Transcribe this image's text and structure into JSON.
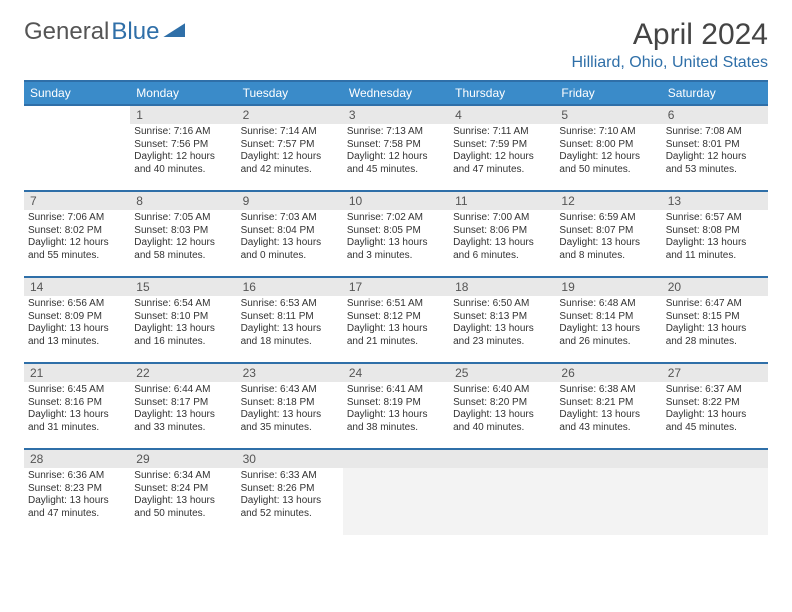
{
  "brand": {
    "part1": "General",
    "part2": "Blue"
  },
  "title": "April 2024",
  "location": "Hilliard, Ohio, United States",
  "colors": {
    "header_bg": "#3a8bc9",
    "border": "#2f6fa8",
    "daynum_bg": "#e8e8e8",
    "text": "#333333",
    "title": "#444444"
  },
  "weekdays": [
    "Sunday",
    "Monday",
    "Tuesday",
    "Wednesday",
    "Thursday",
    "Friday",
    "Saturday"
  ],
  "start_offset": 1,
  "days": [
    {
      "n": 1,
      "sr": "7:16 AM",
      "ss": "7:56 PM",
      "dl": "12 hours and 40 minutes."
    },
    {
      "n": 2,
      "sr": "7:14 AM",
      "ss": "7:57 PM",
      "dl": "12 hours and 42 minutes."
    },
    {
      "n": 3,
      "sr": "7:13 AM",
      "ss": "7:58 PM",
      "dl": "12 hours and 45 minutes."
    },
    {
      "n": 4,
      "sr": "7:11 AM",
      "ss": "7:59 PM",
      "dl": "12 hours and 47 minutes."
    },
    {
      "n": 5,
      "sr": "7:10 AM",
      "ss": "8:00 PM",
      "dl": "12 hours and 50 minutes."
    },
    {
      "n": 6,
      "sr": "7:08 AM",
      "ss": "8:01 PM",
      "dl": "12 hours and 53 minutes."
    },
    {
      "n": 7,
      "sr": "7:06 AM",
      "ss": "8:02 PM",
      "dl": "12 hours and 55 minutes."
    },
    {
      "n": 8,
      "sr": "7:05 AM",
      "ss": "8:03 PM",
      "dl": "12 hours and 58 minutes."
    },
    {
      "n": 9,
      "sr": "7:03 AM",
      "ss": "8:04 PM",
      "dl": "13 hours and 0 minutes."
    },
    {
      "n": 10,
      "sr": "7:02 AM",
      "ss": "8:05 PM",
      "dl": "13 hours and 3 minutes."
    },
    {
      "n": 11,
      "sr": "7:00 AM",
      "ss": "8:06 PM",
      "dl": "13 hours and 6 minutes."
    },
    {
      "n": 12,
      "sr": "6:59 AM",
      "ss": "8:07 PM",
      "dl": "13 hours and 8 minutes."
    },
    {
      "n": 13,
      "sr": "6:57 AM",
      "ss": "8:08 PM",
      "dl": "13 hours and 11 minutes."
    },
    {
      "n": 14,
      "sr": "6:56 AM",
      "ss": "8:09 PM",
      "dl": "13 hours and 13 minutes."
    },
    {
      "n": 15,
      "sr": "6:54 AM",
      "ss": "8:10 PM",
      "dl": "13 hours and 16 minutes."
    },
    {
      "n": 16,
      "sr": "6:53 AM",
      "ss": "8:11 PM",
      "dl": "13 hours and 18 minutes."
    },
    {
      "n": 17,
      "sr": "6:51 AM",
      "ss": "8:12 PM",
      "dl": "13 hours and 21 minutes."
    },
    {
      "n": 18,
      "sr": "6:50 AM",
      "ss": "8:13 PM",
      "dl": "13 hours and 23 minutes."
    },
    {
      "n": 19,
      "sr": "6:48 AM",
      "ss": "8:14 PM",
      "dl": "13 hours and 26 minutes."
    },
    {
      "n": 20,
      "sr": "6:47 AM",
      "ss": "8:15 PM",
      "dl": "13 hours and 28 minutes."
    },
    {
      "n": 21,
      "sr": "6:45 AM",
      "ss": "8:16 PM",
      "dl": "13 hours and 31 minutes."
    },
    {
      "n": 22,
      "sr": "6:44 AM",
      "ss": "8:17 PM",
      "dl": "13 hours and 33 minutes."
    },
    {
      "n": 23,
      "sr": "6:43 AM",
      "ss": "8:18 PM",
      "dl": "13 hours and 35 minutes."
    },
    {
      "n": 24,
      "sr": "6:41 AM",
      "ss": "8:19 PM",
      "dl": "13 hours and 38 minutes."
    },
    {
      "n": 25,
      "sr": "6:40 AM",
      "ss": "8:20 PM",
      "dl": "13 hours and 40 minutes."
    },
    {
      "n": 26,
      "sr": "6:38 AM",
      "ss": "8:21 PM",
      "dl": "13 hours and 43 minutes."
    },
    {
      "n": 27,
      "sr": "6:37 AM",
      "ss": "8:22 PM",
      "dl": "13 hours and 45 minutes."
    },
    {
      "n": 28,
      "sr": "6:36 AM",
      "ss": "8:23 PM",
      "dl": "13 hours and 47 minutes."
    },
    {
      "n": 29,
      "sr": "6:34 AM",
      "ss": "8:24 PM",
      "dl": "13 hours and 50 minutes."
    },
    {
      "n": 30,
      "sr": "6:33 AM",
      "ss": "8:26 PM",
      "dl": "13 hours and 52 minutes."
    }
  ],
  "labels": {
    "sunrise": "Sunrise: ",
    "sunset": "Sunset: ",
    "daylight": "Daylight: "
  }
}
